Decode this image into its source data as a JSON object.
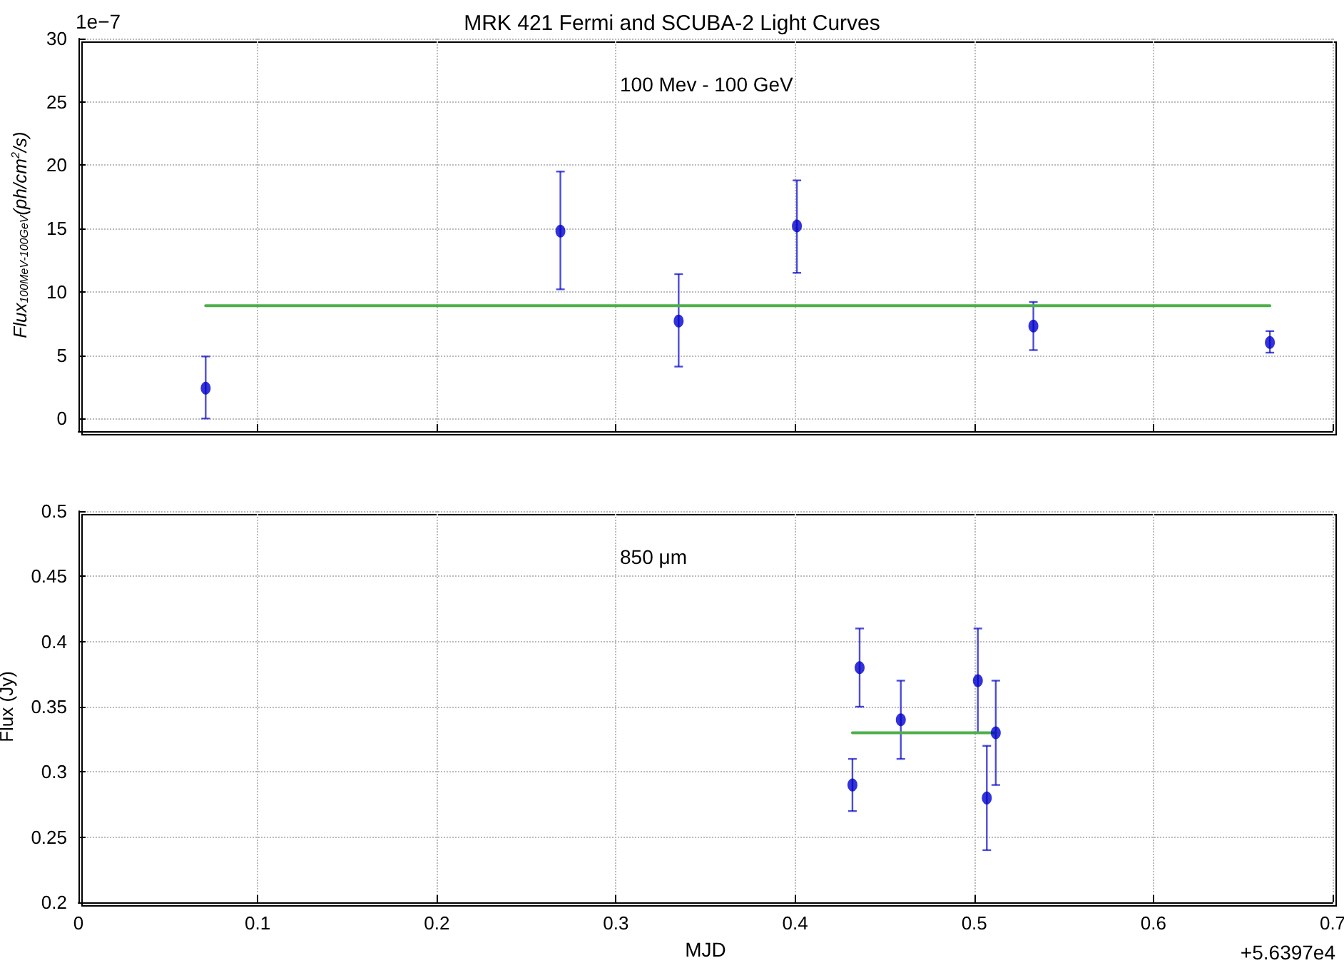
{
  "chart_data": [
    {
      "type": "scatter",
      "title": "MRK 421 Fermi and SCUBA-2 Light Curves",
      "ylabel": "Flux$_{100MeV-100GeV}$(ph/cm$^{2}$/s)",
      "annotations": [
        "100 Mev - 100 GeV",
        "1e−7"
      ],
      "xlim": [
        0,
        0.7
      ],
      "xticks": [
        0,
        0.1,
        0.2,
        0.3,
        0.4,
        0.5,
        0.6,
        0.7
      ],
      "ylim": [
        -1,
        30
      ],
      "yticks": [
        0,
        5,
        10,
        15,
        20,
        25,
        30
      ],
      "grid": true,
      "tick_labels": "y",
      "marker": "circle",
      "series": [
        {
          "type": "line",
          "color": "#4daf4a",
          "x": [
            0.071,
            0.665
          ],
          "values": [
            8.9,
            8.9
          ],
          "marker": "none"
        },
        {
          "color": "#0000cc",
          "x": [
            0.071,
            0.269,
            0.335,
            0.401,
            0.533,
            0.665
          ],
          "values": [
            2.4,
            14.8,
            7.7,
            15.2,
            7.3,
            6.0
          ],
          "errors": [
            [
              0,
              4.9
            ],
            [
              10.2,
              19.5
            ],
            [
              4.1,
              11.4
            ],
            [
              11.5,
              18.8
            ],
            [
              5.4,
              9.2
            ],
            [
              5.2,
              6.9
            ]
          ]
        }
      ]
    },
    {
      "type": "scatter",
      "xlabel": "MJD",
      "ylabel": "Flux (Jy)",
      "annotations": [
        "850 μm",
        "+5.6397e4"
      ],
      "xlim": [
        0,
        0.7
      ],
      "xticks": [
        0,
        0.1,
        0.2,
        0.3,
        0.4,
        0.5,
        0.6,
        0.7
      ],
      "ylim": [
        0.2,
        0.5
      ],
      "yticks": [
        0.2,
        0.25,
        0.3,
        0.35,
        0.4,
        0.45,
        0.5
      ],
      "grid": true,
      "marker": "circle",
      "series": [
        {
          "type": "line",
          "color": "#4daf4a",
          "x": [
            0.432,
            0.512
          ],
          "values": [
            0.33,
            0.33
          ],
          "marker": "none"
        },
        {
          "color": "#0000cc",
          "x": [
            0.432,
            0.436,
            0.459,
            0.502,
            0.507,
            0.512
          ],
          "values": [
            0.29,
            0.38,
            0.34,
            0.37,
            0.28,
            0.33
          ],
          "errors": [
            [
              0.27,
              0.31
            ],
            [
              0.35,
              0.41
            ],
            [
              0.31,
              0.37
            ],
            [
              0.33,
              0.41
            ],
            [
              0.24,
              0.32
            ],
            [
              0.29,
              0.37
            ]
          ]
        }
      ]
    }
  ]
}
